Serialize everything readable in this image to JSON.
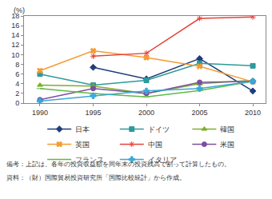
{
  "chart_data": {
    "type": "line",
    "y_label": "(%)",
    "x": [
      1990,
      1995,
      2000,
      2005,
      2010
    ],
    "xlim": [
      1988.5,
      2011.2
    ],
    "xticks": [
      1990,
      1995,
      2000,
      2005,
      2010
    ],
    "ylim": [
      0,
      18
    ],
    "yticks": [
      0,
      2,
      4,
      6,
      8,
      10,
      12,
      14,
      16,
      18
    ],
    "grid": false,
    "legend": "bottom",
    "series": [
      {
        "name": "日本",
        "color": "#1f3d7a",
        "marker": "diamond",
        "values": [
          null,
          7.4,
          5.0,
          9.2,
          2.5
        ]
      },
      {
        "name": "ドイツ",
        "color": "#2e9a9a",
        "marker": "square",
        "values": [
          6.0,
          3.7,
          4.7,
          8.2,
          7.7
        ]
      },
      {
        "name": "韓国",
        "color": "#7fae2e",
        "marker": "triangle-up",
        "values": [
          3.7,
          3.5,
          2.0,
          4.0,
          4.7
        ]
      },
      {
        "name": "英国",
        "color": "#f39c32",
        "marker": "x",
        "values": [
          6.7,
          10.8,
          9.4,
          7.6,
          4.4
        ]
      },
      {
        "name": "中国",
        "color": "#e8413a",
        "marker": "asterisk-open",
        "values": [
          null,
          9.7,
          10.3,
          17.5,
          17.8
        ]
      },
      {
        "name": "米国",
        "color": "#7b4fa0",
        "marker": "circle",
        "values": [
          0.7,
          3.0,
          2.0,
          4.3,
          4.5
        ]
      },
      {
        "name": "フランス",
        "color": "#5fba46",
        "marker": "line-ew-open",
        "values": [
          3.0,
          2.0,
          1.3,
          2.6,
          4.5
        ]
      },
      {
        "name": "イタリア",
        "color": "#3aa8d8",
        "marker": "cross",
        "values": [
          0.4,
          1.5,
          2.5,
          3.0,
          4.5
        ]
      }
    ],
    "notes": [
      "備考：上記は、各年の投資収益額を同年末の投資残高で割って計算したもの。",
      "資料：（財）国際貿易投資研究所「国際比較統計」から作成。"
    ]
  }
}
